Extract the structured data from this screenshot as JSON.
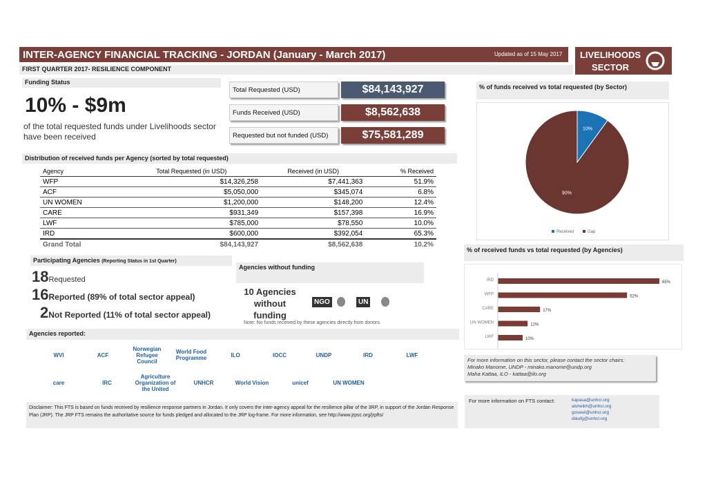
{
  "header": {
    "title": "INTER-AGENCY FINANCIAL TRACKING - JORDAN (January - March 2017)",
    "updated": "Updated as of 15 May 2017",
    "sector": "LIVELIHOODS SECTOR",
    "subtitle": "FIRST QUARTER 2017- RESILIENCE COMPONENT"
  },
  "funding_status": {
    "heading": "Funding Status",
    "headline": "10% - $9m",
    "text": "of the total requested funds under Livelihoods sector have been received"
  },
  "totals": [
    {
      "label": "Total Requested (USD)",
      "value": "$84,143,927"
    },
    {
      "label": "Funds Received (USD)",
      "value": "$8,562,638"
    },
    {
      "label": "Requested but not funded (USD)",
      "value": "$75,581,289"
    }
  ],
  "agency_table": {
    "heading": "Distribution of received funds per Agency (sorted by total requested)",
    "columns": [
      "Agency",
      "Total Requested (in USD)",
      "Received (in USD)",
      "% Received"
    ],
    "rows": [
      [
        "WFP",
        "$14,326,258",
        "$7,441,363",
        "51.9%"
      ],
      [
        "ACF",
        "$5,050,000",
        "$345,074",
        "6.8%"
      ],
      [
        "UN WOMEN",
        "$1,200,000",
        "$148,200",
        "12.4%"
      ],
      [
        "CARE",
        "$931,349",
        "$157,398",
        "16.9%"
      ],
      [
        "LWF",
        "$785,000",
        "$78,550",
        "10.0%"
      ],
      [
        "IRD",
        "$600,000",
        "$392,054",
        "65.3%"
      ]
    ],
    "total": [
      "Grand Total",
      "$84,143,927",
      "$8,562,638",
      "10.2%"
    ]
  },
  "participating": {
    "heading": "Participating Agencies",
    "note": "(Reporting Status in 1st Quarter)",
    "items": [
      {
        "number": 18,
        "label": "Requested"
      },
      {
        "number": 16,
        "label": "Reported (89% of total sector appeal)"
      },
      {
        "number": 2,
        "label": "Not Reported (11% of total sector appeal)"
      }
    ]
  },
  "without_funding": {
    "heading": "Agencies without funding",
    "text": "10 Agencies without funding",
    "icons": [
      "NGO",
      "UN"
    ],
    "note": "Note: No funds received by these agencies directly from donors."
  },
  "agencies_reported": {
    "heading": "Agencies reported:",
    "logos": [
      "WVI",
      "ACF",
      "Norwegian Refugee Council",
      "World Food Programme",
      "ILO",
      "IOCC",
      "UNDP",
      "IRD",
      "LWF",
      "care",
      "IRC",
      "Food and Agriculture Organization of the United Nations",
      "UNHCR",
      "World Vision",
      "unicef",
      "UN WOMEN"
    ]
  },
  "disclaimer": "Disclaimer: This FTS is based on funds received by resilience response partners in Jordan. It only covers the inter-agency appeal for the resilience pillar of the 3RP, in support of the Jordan Response Plan (JRP). The JRP FTS remains the authoritative source for funds pledged and allocated to the JRP log-frame. For more information, see http://www.jrpsc.org/jrpfts/",
  "pie_chart": {
    "type": "pie",
    "title": "% of funds received vs total requested (by Sector)",
    "categories": [
      "Received",
      "Gap"
    ],
    "values": [
      10,
      90
    ],
    "value_labels": [
      "10%",
      "90%"
    ],
    "colors": [
      "#1a73b4",
      "#6b3530"
    ]
  },
  "bar_chart": {
    "type": "bar",
    "title": "% of received funds vs total requested (by Agencies)",
    "categories": [
      "IRD",
      "WFP",
      "CARE",
      "UN WOMEN",
      "LWF"
    ],
    "values": [
      65,
      52,
      17,
      12,
      10
    ],
    "value_labels": [
      "65%",
      "52%",
      "17%",
      "12%",
      "10%"
    ],
    "color": "#7a3b34"
  },
  "contacts": {
    "intro": "For more information on this sector, please contact the sector chairs:",
    "lines": [
      "Minako Manome, UNDP - minako.manome@undp.org",
      "Maha Kattaa, ILO - kattaa@ilo.org"
    ]
  },
  "fts_contact": {
    "label": "For more information on FTS contact:",
    "emails": [
      "kapasa@unhcr.org",
      "alsheikh@unhcr.org",
      "gosewi@unhcr.org",
      "diaufg@unhcr.org"
    ]
  }
}
